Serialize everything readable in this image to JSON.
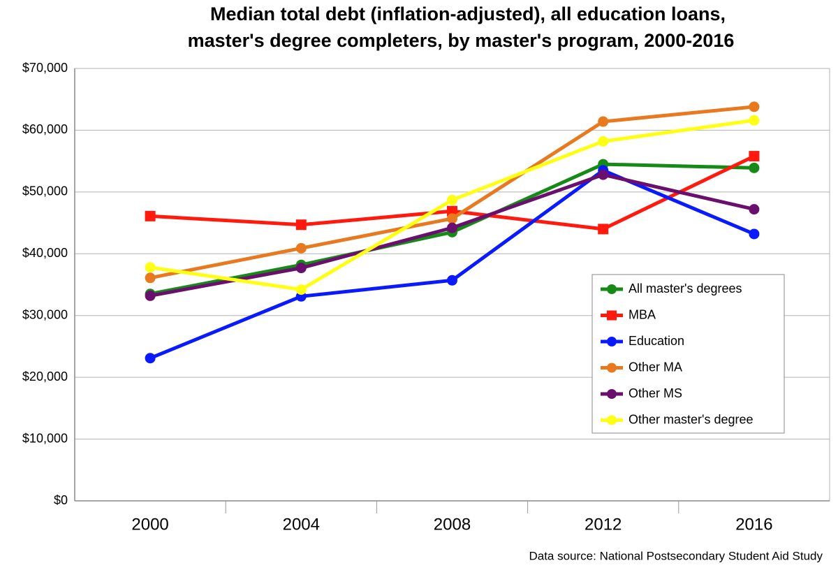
{
  "chart_data": {
    "type": "line",
    "title": [
      "Median total debt (inflation-adjusted), all education loans,",
      "master's degree completers, by master's program, 2000-2016"
    ],
    "categories": [
      "2000",
      "2004",
      "2008",
      "2012",
      "2016"
    ],
    "series": [
      {
        "name": "All master's degrees",
        "color": "#168a16",
        "marker": "circle",
        "values": [
          33500,
          38200,
          43500,
          54500,
          53900
        ]
      },
      {
        "name": "MBA",
        "color": "#ff1a0d",
        "marker": "square",
        "values": [
          46100,
          44700,
          46900,
          44000,
          55800
        ]
      },
      {
        "name": "Education",
        "color": "#0a1aff",
        "marker": "circle",
        "values": [
          23100,
          33100,
          35700,
          53500,
          43200
        ]
      },
      {
        "name": "Other MA",
        "color": "#e8791e",
        "marker": "circle",
        "values": [
          36100,
          40900,
          45700,
          61400,
          63800
        ]
      },
      {
        "name": "Other MS",
        "color": "#6a0f6e",
        "marker": "circle",
        "values": [
          33200,
          37700,
          44200,
          52800,
          47200
        ]
      },
      {
        "name": "Other master's degree",
        "color": "#ffff14",
        "marker": "circle",
        "values": [
          37800,
          34200,
          48700,
          58200,
          61600
        ]
      }
    ],
    "ylim": [
      0,
      70000
    ],
    "yticks": [
      {
        "value": 0,
        "label": "$0"
      },
      {
        "value": 10000,
        "label": "$10,000"
      },
      {
        "value": 20000,
        "label": "$20,000"
      },
      {
        "value": 30000,
        "label": "$30,000"
      },
      {
        "value": 40000,
        "label": "$40,000"
      },
      {
        "value": 50000,
        "label": "$50,000"
      },
      {
        "value": 60000,
        "label": "$60,000"
      },
      {
        "value": 70000,
        "label": "$70,000"
      }
    ],
    "grid": true,
    "legend": "right",
    "source": "Data source: National Postsecondary Student Aid Study"
  }
}
